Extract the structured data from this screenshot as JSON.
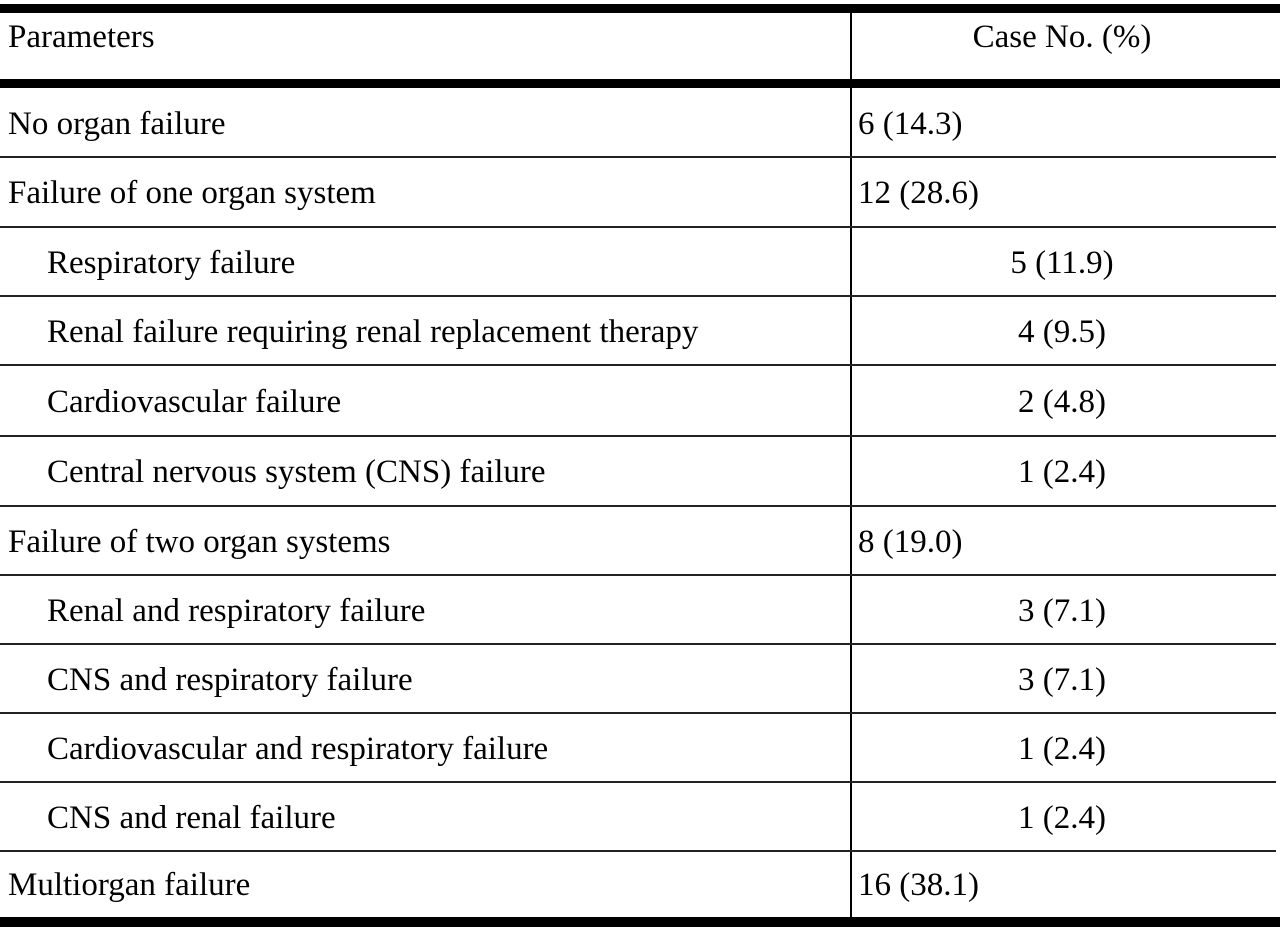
{
  "table": {
    "headers": {
      "parameters": "Parameters",
      "case_no": "Case No. (%)"
    },
    "rows": [
      {
        "label": "No organ failure",
        "value": "6 (14.3)",
        "indent": false
      },
      {
        "label": "Failure of one organ system",
        "value": "12 (28.6)",
        "indent": false
      },
      {
        "label": "Respiratory failure",
        "value": "5 (11.9)",
        "indent": true
      },
      {
        "label": "Renal failure requiring renal replacement therapy",
        "value": "4 (9.5)",
        "indent": true
      },
      {
        "label": "Cardiovascular failure",
        "value": "2 (4.8)",
        "indent": true
      },
      {
        "label": "Central nervous system (CNS) failure",
        "value": "1 (2.4)",
        "indent": true
      },
      {
        "label": "Failure of two organ systems",
        "value": "8 (19.0)",
        "indent": false
      },
      {
        "label": "Renal and respiratory failure",
        "value": "3 (7.1)",
        "indent": true
      },
      {
        "label": "CNS and respiratory failure",
        "value": "3 (7.1)",
        "indent": true
      },
      {
        "label": "Cardiovascular and respiratory failure",
        "value": "1 (2.4)",
        "indent": true
      },
      {
        "label": "CNS and renal failure",
        "value": "1 (2.4)",
        "indent": true
      },
      {
        "label": "Multiorgan failure",
        "value": "16 (38.1)",
        "indent": false
      }
    ]
  }
}
